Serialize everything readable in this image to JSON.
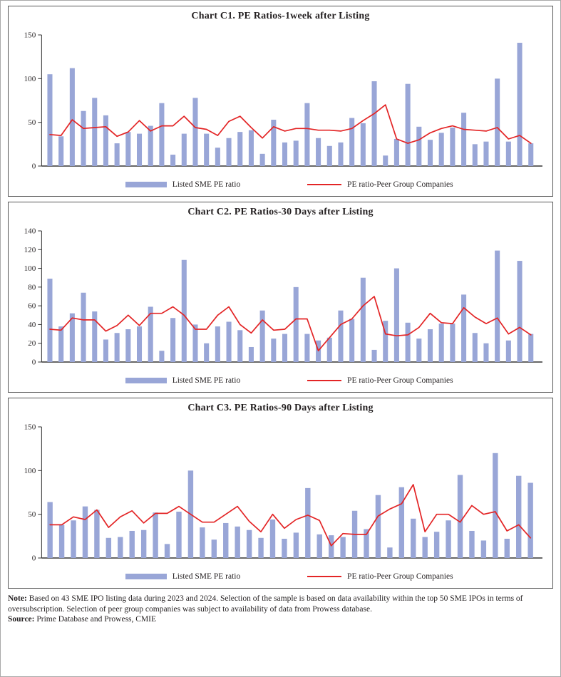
{
  "figure": {
    "legend": {
      "bars": "Listed SME PE ratio",
      "line": "PE ratio-Peer Group Companies"
    },
    "note_label": "Note:",
    "note_text": " Based on 43 SME IPO listing data during 2023 and 2024. Selection of the sample is based on data availability within the top 50 SME IPOs in terms of oversubscription. Selection of peer group companies was subject to availability of data from Prowess database.",
    "source_label": "Source:",
    "source_text": " Prime Database and Prowess, CMIE",
    "colors": {
      "bar": "#99a6d7",
      "line": "#e32526",
      "axis": "#333333",
      "text": "#231f20"
    }
  },
  "chart_data": [
    {
      "type": "bar",
      "title": "Chart C1. PE Ratios-1week after Listing",
      "ylim": [
        0,
        150
      ],
      "yticks": [
        0,
        50,
        100,
        150
      ],
      "grid": false,
      "legend_position": "bottom",
      "x_tick_labels": [],
      "series": [
        {
          "name": "Listed SME PE ratio",
          "type": "bar",
          "values": [
            105,
            34,
            112,
            63,
            78,
            58,
            26,
            39,
            37,
            46,
            72,
            13,
            37,
            78,
            37,
            21,
            32,
            39,
            41,
            14,
            53,
            27,
            29,
            72,
            32,
            23,
            27,
            55,
            49,
            97,
            12,
            31,
            94,
            45,
            30,
            38,
            44,
            61,
            25,
            28,
            100,
            28,
            141,
            26
          ]
        },
        {
          "name": "PE ratio-Peer Group Companies",
          "type": "line",
          "values": [
            36,
            35,
            53,
            43,
            44,
            45,
            34,
            39,
            52,
            40,
            46,
            46,
            57,
            44,
            42,
            35,
            51,
            57,
            44,
            32,
            45,
            40,
            43,
            43,
            41,
            41,
            40,
            43,
            52,
            60,
            70,
            31,
            26,
            30,
            38,
            43,
            46,
            42,
            41,
            40,
            44,
            31,
            35,
            26
          ]
        }
      ]
    },
    {
      "type": "bar",
      "title": "Chart C2. PE Ratios-30 Days after Listing",
      "ylim": [
        0,
        140
      ],
      "yticks": [
        0,
        20,
        40,
        60,
        80,
        100,
        120,
        140
      ],
      "grid": false,
      "legend_position": "bottom",
      "x_tick_labels": [],
      "series": [
        {
          "name": "Listed SME PE ratio",
          "type": "bar",
          "values": [
            89,
            38,
            52,
            74,
            54,
            24,
            31,
            35,
            38,
            59,
            12,
            47,
            109,
            40,
            20,
            38,
            43,
            34,
            16,
            55,
            25,
            30,
            80,
            30,
            23,
            26,
            55,
            46,
            90,
            13,
            44,
            100,
            42,
            25,
            35,
            41,
            41,
            72,
            31,
            20,
            119,
            23,
            108,
            30
          ]
        },
        {
          "name": "PE ratio-Peer Group Companies",
          "type": "line",
          "values": [
            35,
            34,
            47,
            45,
            45,
            33,
            39,
            50,
            39,
            52,
            52,
            59,
            50,
            35,
            35,
            50,
            59,
            40,
            31,
            45,
            34,
            35,
            46,
            46,
            12,
            26,
            40,
            46,
            60,
            70,
            30,
            28,
            29,
            37,
            52,
            42,
            41,
            58,
            48,
            41,
            47,
            30,
            37,
            29
          ]
        }
      ]
    },
    {
      "type": "bar",
      "title": "Chart C3. PE Ratios-90 Days after Listing",
      "ylim": [
        0,
        150
      ],
      "yticks": [
        0,
        50,
        100,
        150
      ],
      "grid": false,
      "legend_position": "bottom",
      "x_tick_labels": [],
      "series": [
        {
          "name": "Listed SME PE ratio",
          "type": "bar",
          "values": [
            64,
            38,
            43,
            59,
            55,
            23,
            24,
            31,
            32,
            52,
            16,
            53,
            100,
            35,
            21,
            40,
            36,
            32,
            23,
            44,
            22,
            29,
            80,
            27,
            26,
            24,
            54,
            33,
            72,
            12,
            81,
            45,
            24,
            30,
            43,
            95,
            31,
            20,
            120,
            22,
            94,
            86
          ]
        },
        {
          "name": "PE ratio-Peer Group Companies",
          "type": "line",
          "values": [
            38,
            38,
            47,
            44,
            55,
            35,
            47,
            54,
            40,
            51,
            51,
            59,
            50,
            41,
            41,
            50,
            59,
            42,
            30,
            50,
            34,
            44,
            49,
            43,
            14,
            28,
            27,
            27,
            48,
            56,
            62,
            84,
            30,
            50,
            50,
            41,
            60,
            50,
            53,
            31,
            38,
            23
          ]
        }
      ]
    }
  ]
}
